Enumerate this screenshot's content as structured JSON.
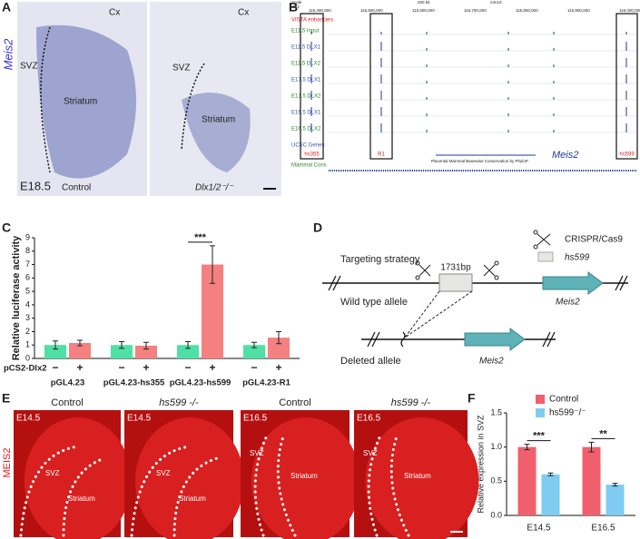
{
  "panel_labels": [
    "A",
    "B",
    "C",
    "D",
    "E",
    "F"
  ],
  "panel_a": {
    "gene": "Meis2",
    "left": {
      "cx": "Cx",
      "svz": "SVZ",
      "striatum": "Striatum",
      "stage": "E18.5",
      "genotype": "Control"
    },
    "right": {
      "cx": "Cx",
      "svz": "SVZ",
      "striatum": "Striatum",
      "genotype": "Dlx1/2⁻/⁻"
    }
  },
  "panel_b": {
    "scale": "Scale",
    "chrom": "chr2",
    "scale_bar": "200 kb",
    "assembly": "mm10",
    "coordinates": [
      "115,400,000",
      "115,500,000",
      "115,600,000",
      "115,700,000",
      "115,800,000",
      "115,900,000",
      "116,000,000"
    ],
    "tracks": [
      "VISTA enhancers",
      "E11.5 Input",
      "E11.5 DLX1",
      "E11.5 DLX2",
      "E13.5 DLX1",
      "E13.5 DLX2",
      "E16.5 DLX1",
      "E16.5 DLX2",
      "UCSC Genes",
      "Mammal Cons"
    ],
    "boxes": [
      "hs355",
      "R1",
      "hs599"
    ],
    "gene": "Meis2",
    "cons_note": "Placental Mammal Basewise Conservation by PhyloP"
  },
  "panel_d": {
    "title": "Targeting strategy",
    "legend_cas9": "CRISPR/Cas9",
    "legend_hs599": "hs599",
    "length": "1731bp",
    "wt": "Wild type allele",
    "deleted": "Deleted allele",
    "gene_wt": "Meis2",
    "gene_deleted": "Meis2"
  },
  "panel_e": {
    "marker": "MEIS2",
    "images": [
      {
        "stage": "E14.5",
        "genotype": "Control",
        "svz": "SVZ",
        "striatum": "Striatum"
      },
      {
        "stage": "E14.5",
        "genotype": "hs599 -/-",
        "svz": "SVZ",
        "striatum": "Striatum"
      },
      {
        "stage": "E16.5",
        "genotype": "Control",
        "svz": "SVZ",
        "striatum": "Striatum"
      },
      {
        "stage": "E16.5",
        "genotype": "hs599 -/-",
        "svz": "SVZ",
        "striatum": "Striatum"
      }
    ]
  },
  "chart_data": [
    {
      "type": "bar",
      "ylabel": "Relative luciferase activity",
      "series_label": "pCS2-Dlx2",
      "categories": [
        "pGL4.23",
        "pGL4.23-hs355",
        "pGL4.23-hs599",
        "pGL4.23-R1"
      ],
      "series": [
        {
          "name": "−",
          "color": "#4fe0a6",
          "values": [
            1.0,
            1.0,
            1.0,
            1.0
          ],
          "errors": [
            0.3,
            0.25,
            0.25,
            0.2
          ]
        },
        {
          "name": "+",
          "color": "#f58080",
          "values": [
            1.15,
            0.95,
            7.0,
            1.55
          ],
          "errors": [
            0.2,
            0.25,
            1.4,
            0.45
          ]
        }
      ],
      "annotations": [
        null,
        null,
        "***",
        null
      ],
      "ylim": [
        0,
        9
      ],
      "yticks": [
        0,
        1,
        2,
        3,
        4,
        5,
        6,
        7,
        8,
        9
      ]
    },
    {
      "type": "bar",
      "ylabel": "Relative expression in SVZ",
      "categories": [
        "E14.5",
        "E16.5"
      ],
      "series": [
        {
          "name": "Control",
          "color": "#f0606c",
          "values": [
            1.0,
            1.0
          ],
          "errors": [
            0.04,
            0.07
          ]
        },
        {
          "name": "hs599⁻/⁻",
          "color": "#7fcbf2",
          "values": [
            0.6,
            0.45
          ],
          "errors": [
            0.02,
            0.02
          ]
        }
      ],
      "annotations": [
        "***",
        "**"
      ],
      "ylim": [
        0,
        1.5
      ],
      "yticks": [
        {
          "value": 0,
          "label": "0.0"
        },
        {
          "value": 0.5,
          "label": "0.5"
        },
        {
          "value": 1,
          "label": "1.0"
        },
        {
          "value": 1.5,
          "label": "1.5"
        }
      ]
    }
  ]
}
